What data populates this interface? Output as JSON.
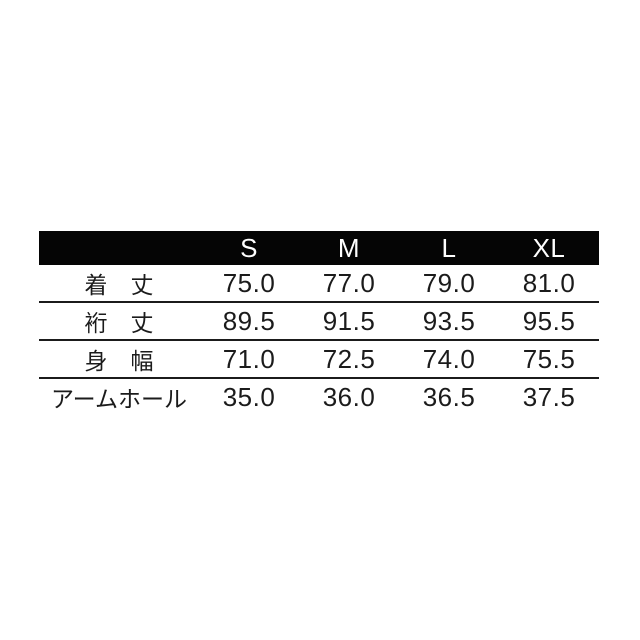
{
  "table": {
    "columns": [
      "S",
      "M",
      "L",
      "XL"
    ],
    "rows": [
      {
        "label": "着　丈",
        "values": [
          "75.0",
          "77.0",
          "79.0",
          "81.0"
        ]
      },
      {
        "label": "裄　丈",
        "values": [
          "89.5",
          "91.5",
          "93.5",
          "95.5"
        ]
      },
      {
        "label": "身　幅",
        "values": [
          "71.0",
          "72.5",
          "74.0",
          "75.5"
        ]
      },
      {
        "label": "アームホール",
        "values": [
          "35.0",
          "36.0",
          "36.5",
          "37.5"
        ]
      }
    ],
    "colors": {
      "header_bg": "#050505",
      "header_text": "#ffffff",
      "body_text": "#1b1b1b",
      "divider": "#1b1b1b",
      "background": "#ffffff"
    }
  },
  "chart_data": {
    "type": "table",
    "title": "",
    "categories": [
      "S",
      "M",
      "L",
      "XL"
    ],
    "series": [
      {
        "name": "着丈",
        "values": [
          75.0,
          77.0,
          79.0,
          81.0
        ]
      },
      {
        "name": "裄丈",
        "values": [
          89.5,
          91.5,
          93.5,
          95.5
        ]
      },
      {
        "name": "身幅",
        "values": [
          71.0,
          72.5,
          74.0,
          75.5
        ]
      },
      {
        "name": "アームホール",
        "values": [
          35.0,
          36.0,
          36.5,
          37.5
        ]
      }
    ]
  }
}
